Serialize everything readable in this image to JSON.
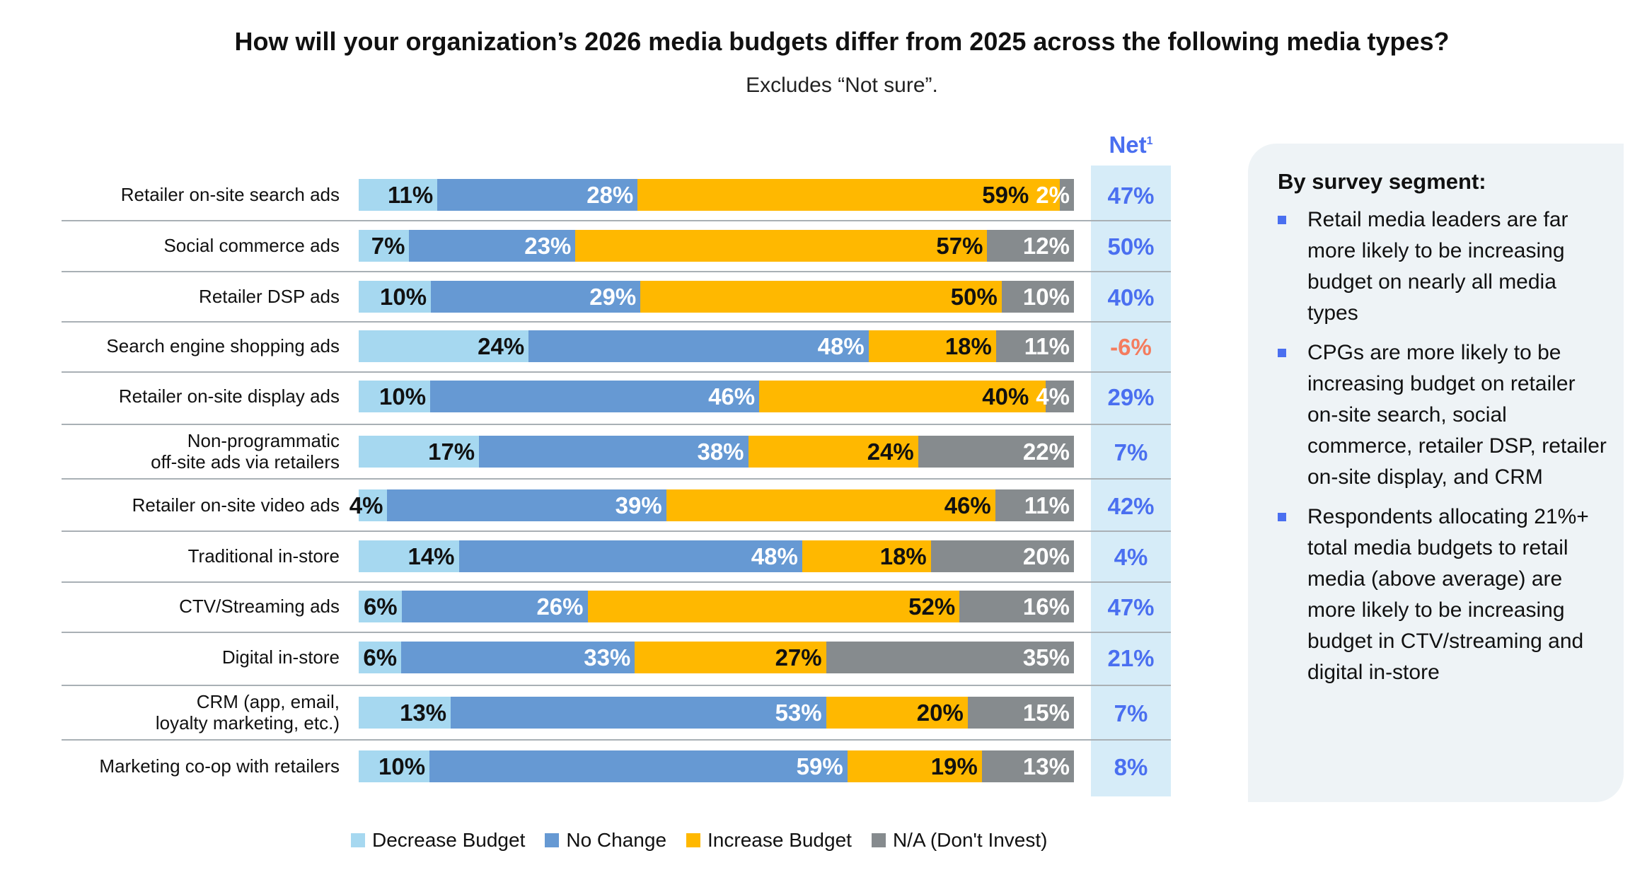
{
  "title": "How will your organization’s 2026 media budgets differ from 2025 across the following media types?",
  "subtitle": "Excludes “Not sure”.",
  "net_header": "Net",
  "net_footnote": "1",
  "colors": {
    "decrease": "#a6d8f0",
    "no_change": "#6699d3",
    "increase": "#ffb800",
    "na": "#868b8e",
    "net_positive": "#4a6ff0",
    "net_negative": "#f47c5e",
    "net_bg": "#d6ecf8"
  },
  "chart_data": {
    "type": "bar",
    "orientation": "horizontal",
    "stacked": "100%",
    "legend_position": "bottom",
    "categories": [
      "Retailer on-site search ads",
      "Social commerce ads",
      "Retailer DSP ads",
      "Search engine shopping ads",
      "Retailer on-site display ads",
      "Non-programmatic\noff-site ads via retailers",
      "Retailer on-site video ads",
      "Traditional in-store",
      "CTV/Streaming ads",
      "Digital in-store",
      "CRM (app, email,\nloyalty marketing, etc.)",
      "Marketing co-op with retailers"
    ],
    "series": [
      {
        "name": "Decrease Budget",
        "values": [
          11,
          7,
          10,
          24,
          10,
          17,
          4,
          14,
          6,
          6,
          13,
          10
        ]
      },
      {
        "name": "No Change",
        "values": [
          28,
          23,
          29,
          48,
          46,
          38,
          39,
          48,
          26,
          33,
          53,
          59
        ]
      },
      {
        "name": "Increase Budget",
        "values": [
          59,
          57,
          50,
          18,
          40,
          24,
          46,
          18,
          52,
          27,
          20,
          19
        ]
      },
      {
        "name": "N/A (Don't Invest)",
        "values": [
          2,
          12,
          10,
          11,
          4,
          22,
          11,
          20,
          16,
          35,
          15,
          13
        ]
      }
    ],
    "net": [
      "47%",
      "50%",
      "40%",
      "-6%",
      "29%",
      "7%",
      "42%",
      "4%",
      "47%",
      "21%",
      "7%",
      "8%"
    ]
  },
  "panel": {
    "title": "By survey segment:",
    "bullets": [
      "Retail media leaders are far more likely to be increasing budget on nearly all media types",
      "CPGs are more likely to be increasing budget on retailer on-site search, social commerce, retailer DSP, retailer on-site display, and CRM",
      "Respondents allocating 21%+ total media budgets to retail media (above average) are more likely to be increasing budget in CTV/streaming and digital in-store"
    ]
  }
}
